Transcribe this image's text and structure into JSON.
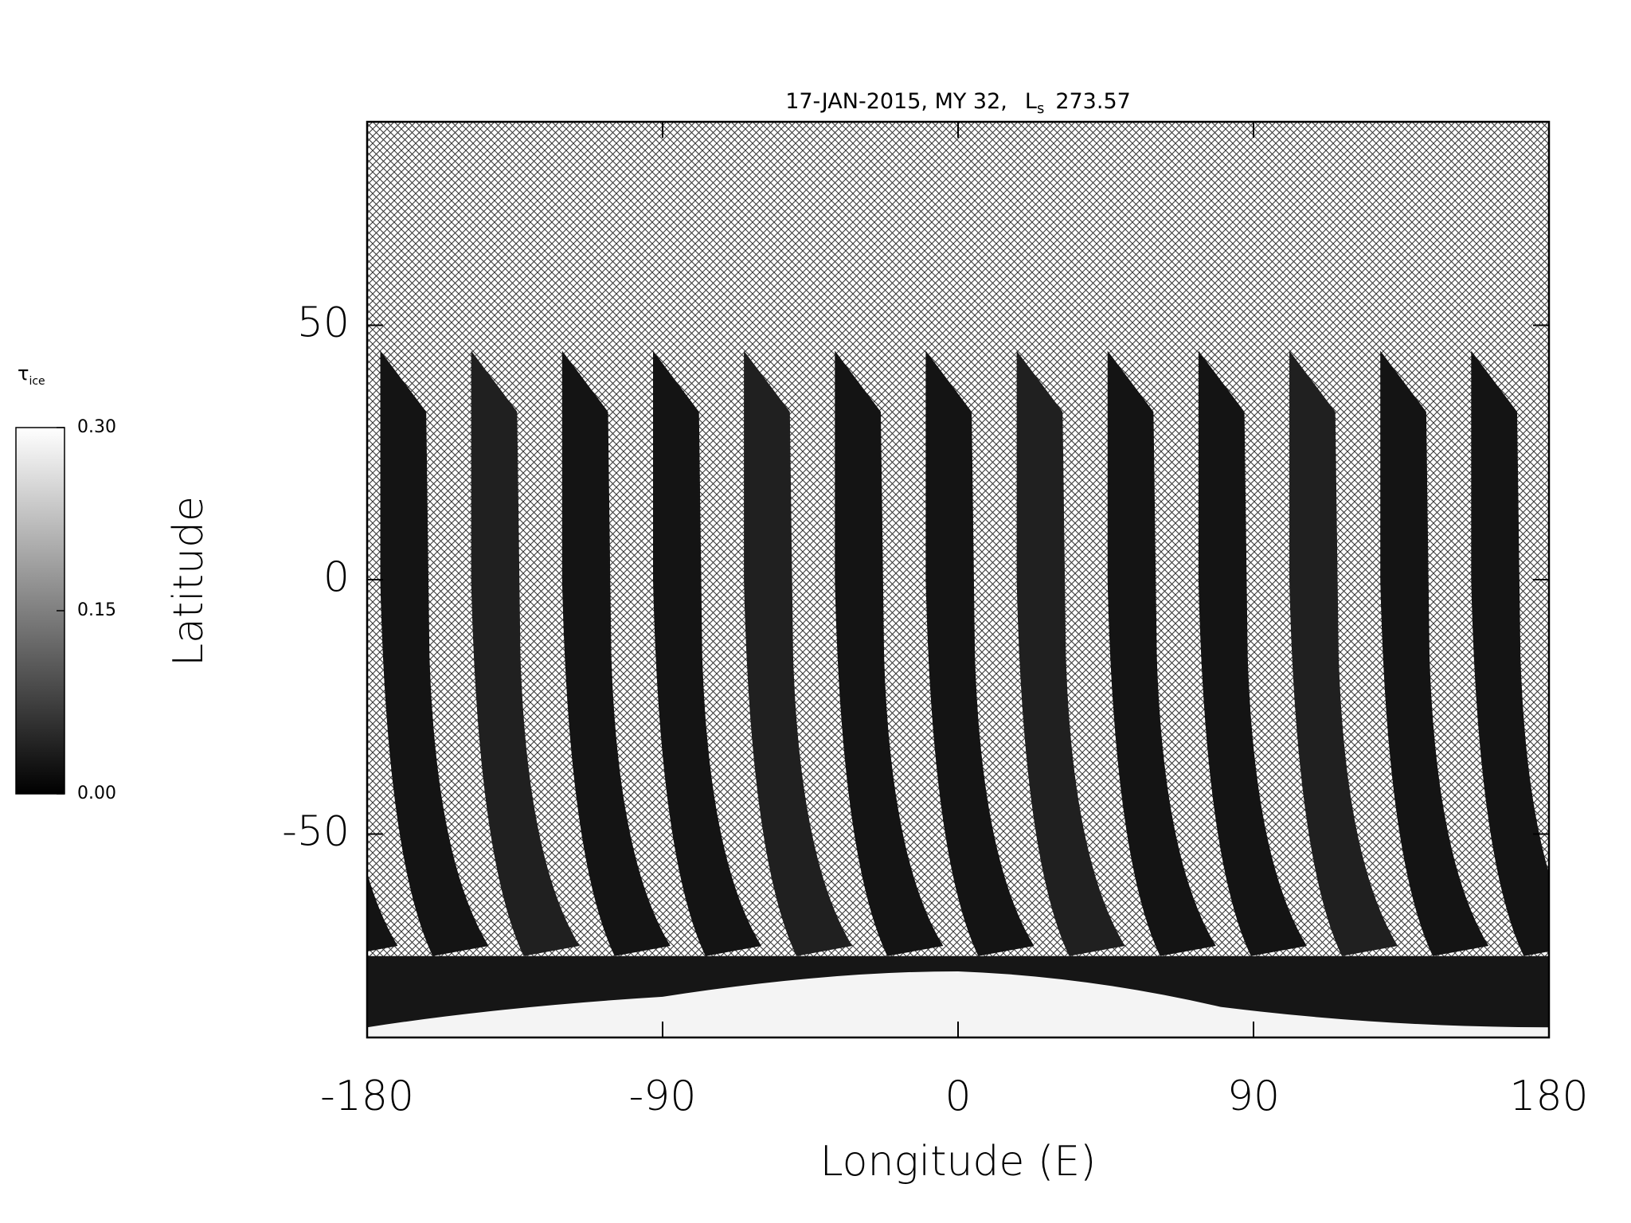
{
  "chart_data": {
    "type": "map",
    "title": "17-JAN-2015, MY 32,",
    "ls_symbol": "L",
    "ls_subscript": "s",
    "ls_value": 273.57,
    "x_label": "Longitude (E)",
    "y_label": "Latitude",
    "xlim": [
      -180,
      180
    ],
    "ylim": [
      -90,
      90
    ],
    "xticks": [
      -180,
      -90,
      0,
      90,
      180
    ],
    "yticks": [
      -50,
      0,
      50
    ],
    "colorbar": {
      "label": "τ",
      "label_subscript": "ice",
      "clim": [
        0,
        0.3
      ],
      "ticks": [
        {
          "value": 0,
          "label": "0.00"
        },
        {
          "value": 0.15,
          "label": "0.15"
        },
        {
          "value": 0.3,
          "label": "0.30"
        }
      ],
      "colors": [
        "#000000",
        "#ffffff"
      ]
    }
  }
}
